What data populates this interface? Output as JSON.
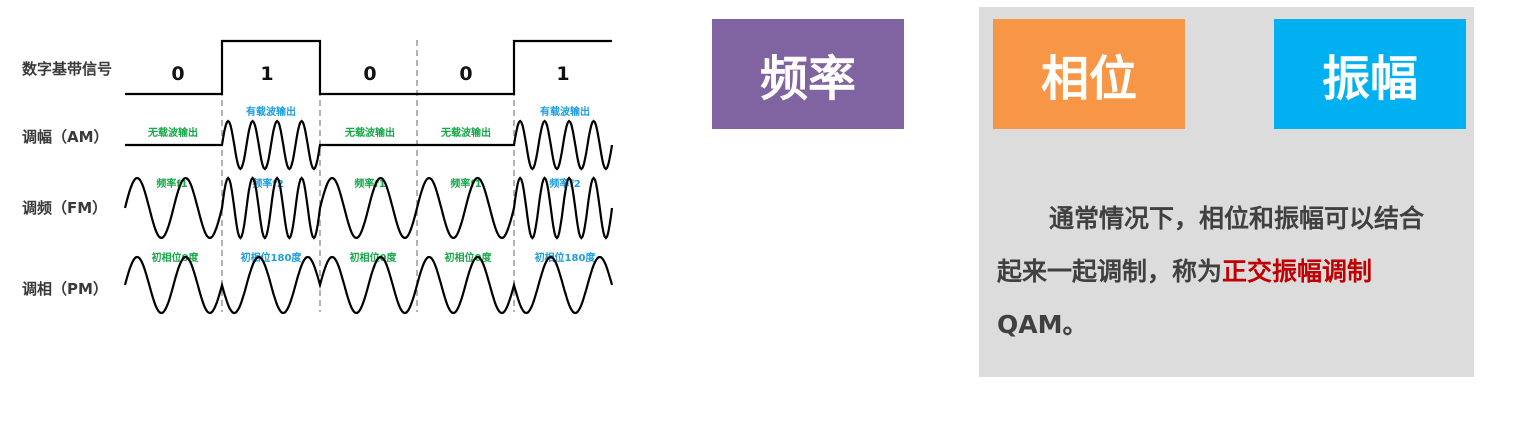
{
  "diagram": {
    "bits": [
      "0",
      "1",
      "0",
      "0",
      "1"
    ],
    "rows": [
      {
        "label": "数字基带信号"
      },
      {
        "label": "调幅（AM）",
        "notes": [
          "无载波输出",
          "有载波输出",
          "无载波输出",
          "无载波输出",
          "有载波输出"
        ]
      },
      {
        "label": "调频（FM）",
        "notes": [
          "频率f1",
          "频率f2",
          "频率f1",
          "频率f1",
          "频率f2"
        ]
      },
      {
        "label": "调相（PM）",
        "notes": [
          "初相位0度",
          "初相位180度",
          "初相位0度",
          "初相位0度",
          "初相位180度"
        ]
      }
    ],
    "colors": {
      "green": "#18a84a",
      "blue": "#1e9ee0",
      "waveform": "#000000",
      "divider": "#8a8a8a"
    }
  },
  "tags": {
    "frequency": {
      "label": "频率",
      "color": "#8064a2"
    },
    "phase": {
      "label": "相位",
      "color": "#f79646"
    },
    "amplitude": {
      "label": "振幅",
      "color": "#00b0f0"
    }
  },
  "panel": {
    "background": "#dcdcdc",
    "text_before": "通常情况下，相位和振幅可以结合起来一起调制，称为",
    "highlight": "正交振幅调制",
    "text_after": "QAM。",
    "highlight_color": "#c00000"
  }
}
